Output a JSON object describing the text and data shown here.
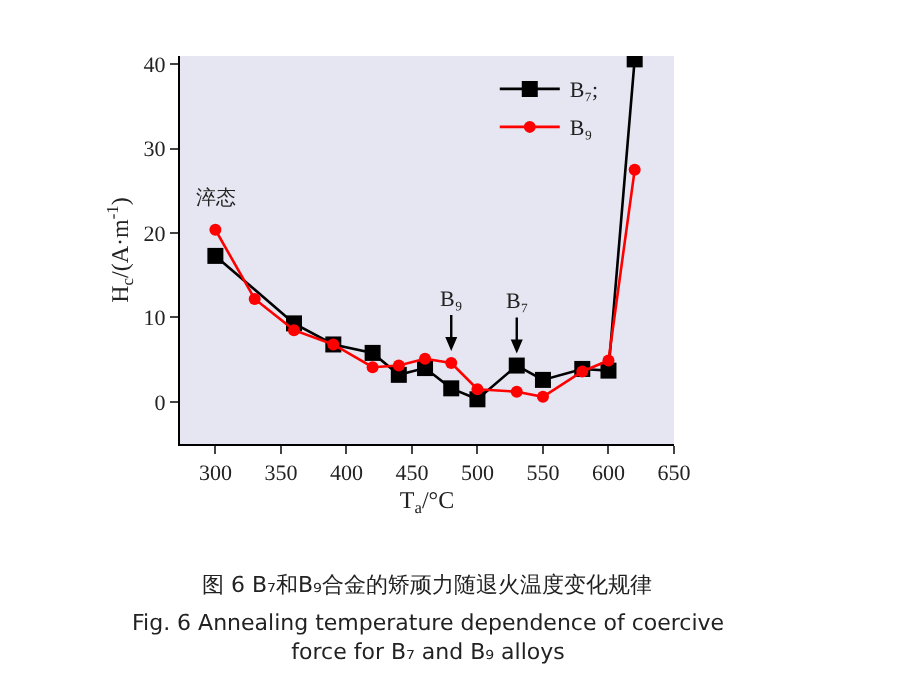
{
  "chart_data": {
    "type": "line",
    "xlabel": "T$_{a}$/°C",
    "ylabel": "H$_{c}$/(A·m$^{-1}$)",
    "xlim": [
      273,
      650
    ],
    "xticks": [
      300,
      350,
      400,
      450,
      500,
      550,
      600,
      650
    ],
    "ylim": [
      -5,
      41
    ],
    "yticks": [
      0,
      10,
      20,
      30,
      40
    ],
    "grid": false,
    "legend": "top right",
    "marker": "circle",
    "line_style": "solid",
    "series": [
      {
        "name": "B₇;",
        "color": "#000000",
        "marker": "square",
        "x": [
          300,
          360,
          390,
          420,
          440,
          460,
          480,
          500,
          530,
          550,
          580,
          600,
          620
        ],
        "values": [
          17.3,
          9.3,
          6.8,
          5.8,
          3.2,
          4.0,
          1.6,
          0.3,
          4.3,
          2.6,
          3.9,
          3.7,
          40.6
        ]
      },
      {
        "name": "B₉",
        "color": "#ff0000",
        "x": [
          300,
          330,
          360,
          390,
          420,
          440,
          460,
          480,
          500,
          530,
          550,
          580,
          600,
          620
        ],
        "values": [
          20.4,
          12.2,
          8.5,
          6.8,
          4.1,
          4.3,
          5.1,
          4.6,
          1.5,
          1.2,
          0.6,
          3.6,
          4.9,
          27.5
        ]
      }
    ],
    "annotations": [
      {
        "text": "淬态",
        "x": 300,
        "y": 20.4
      },
      {
        "text": "B₉",
        "x": 480,
        "y": 4.6
      },
      {
        "text": "B₇",
        "x": 530,
        "y": 4.3
      },
      "图 6 B₇和B₉合金的矫顽力随退火温度变化规律",
      "Fig. 6 Annealing temperature dependence of coercive force for B₇ and B₉ alloys"
    ]
  }
}
